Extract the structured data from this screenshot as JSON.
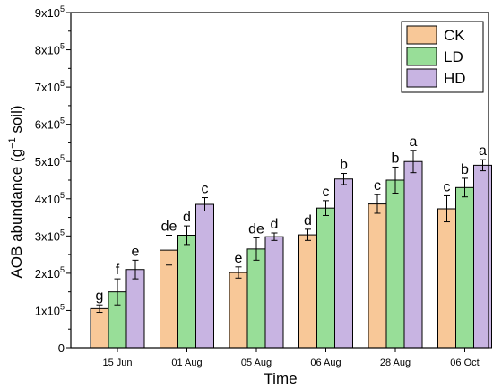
{
  "chart_data": {
    "type": "bar",
    "title": "",
    "xlabel": "Time",
    "ylabel": "AOB abundance (g",
    "ylabel_sup": "−1",
    "ylabel_suffix": " soil)",
    "ylim": [
      0,
      900000
    ],
    "y_ticks": [
      {
        "value": 0,
        "label": "0"
      },
      {
        "value": 100000,
        "base": "1x10",
        "exp": "5"
      },
      {
        "value": 200000,
        "base": "2x10",
        "exp": "5"
      },
      {
        "value": 300000,
        "base": "3x10",
        "exp": "5"
      },
      {
        "value": 400000,
        "base": "4x10",
        "exp": "5"
      },
      {
        "value": 500000,
        "base": "5x10",
        "exp": "5"
      },
      {
        "value": 600000,
        "base": "6x10",
        "exp": "5"
      },
      {
        "value": 700000,
        "base": "7x10",
        "exp": "5"
      },
      {
        "value": 800000,
        "base": "8x10",
        "exp": "5"
      },
      {
        "value": 900000,
        "base": "9x10",
        "exp": "5"
      }
    ],
    "categories": [
      "15 Jun",
      "01 Aug",
      "05 Aug",
      "06 Aug",
      "28 Aug",
      "06 Oct"
    ],
    "legend_position": "top-right",
    "grid": false,
    "series": [
      {
        "name": "CK",
        "color": "#F8C898",
        "values": [
          105000,
          262000,
          202000,
          303000,
          386000,
          373000
        ],
        "errors": [
          10000,
          40000,
          15000,
          15000,
          25000,
          35000
        ],
        "letters": [
          "g",
          "de",
          "e",
          "d",
          "c",
          "c"
        ]
      },
      {
        "name": "LD",
        "color": "#98DE98",
        "values": [
          150000,
          302000,
          265000,
          375000,
          450000,
          430000
        ],
        "errors": [
          35000,
          25000,
          30000,
          20000,
          35000,
          25000
        ],
        "letters": [
          "f",
          "d",
          "de",
          "c",
          "b",
          "b"
        ]
      },
      {
        "name": "HD",
        "color": "#C8B4E2",
        "values": [
          210000,
          385000,
          298000,
          453000,
          500000,
          490000
        ],
        "errors": [
          25000,
          18000,
          10000,
          15000,
          30000,
          15000
        ],
        "letters": [
          "e",
          "c",
          "d",
          "b",
          "a",
          "a"
        ]
      }
    ]
  }
}
